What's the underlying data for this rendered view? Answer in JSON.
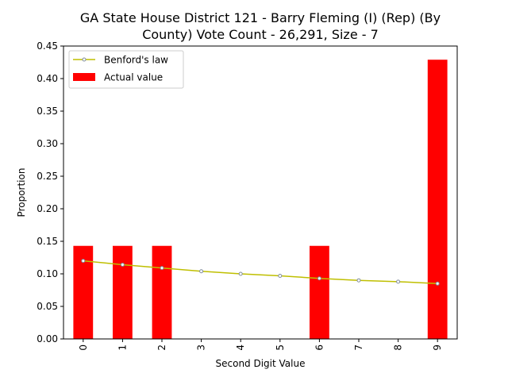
{
  "chart_data": {
    "type": "bar",
    "title_lines": [
      "GA State House District 121 - Barry Fleming (I) (Rep) (By",
      "County) Vote Count - 26,291, Size - 7"
    ],
    "xlabel": "Second Digit Value",
    "ylabel": "Proportion",
    "categories": [
      "0",
      "1",
      "2",
      "3",
      "4",
      "5",
      "6",
      "7",
      "8",
      "9"
    ],
    "ylim": [
      0,
      0.45
    ],
    "yticks": [
      0.0,
      0.05,
      0.1,
      0.15,
      0.2,
      0.25,
      0.3,
      0.35,
      0.4,
      0.45
    ],
    "ytick_labels": [
      "0.00",
      "0.05",
      "0.10",
      "0.15",
      "0.20",
      "0.25",
      "0.30",
      "0.35",
      "0.40",
      "0.45"
    ],
    "grid": false,
    "legend_position": "top-left",
    "series": [
      {
        "name": "Actual value",
        "kind": "bar",
        "color": "#ff0000",
        "values": [
          0.143,
          0.143,
          0.143,
          0.0,
          0.0,
          0.0,
          0.143,
          0.0,
          0.0,
          0.429
        ]
      },
      {
        "name": "Benford's law",
        "kind": "line",
        "color": "#bfbf00",
        "marker_edge": "#7f8c9d",
        "values": [
          0.12,
          0.114,
          0.109,
          0.104,
          0.1,
          0.097,
          0.093,
          0.09,
          0.088,
          0.085
        ]
      }
    ]
  }
}
